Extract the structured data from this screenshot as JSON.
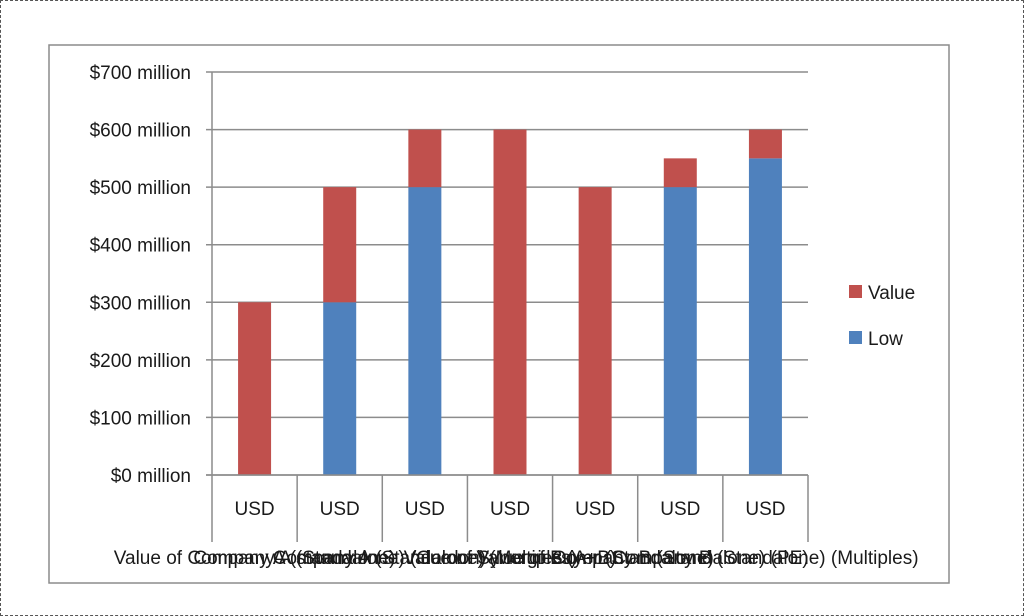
{
  "chart_data": {
    "type": "bar",
    "stacked": true,
    "categories": [
      "Value of Company A (standalone)",
      "Company A (Standalone) (Gordon)",
      "Company A (Standalone) (Multiples)",
      "Value of Synergies (A+B)",
      "Value of Buyer (Standalone)",
      "Company B (Standalone) (PE)",
      "Company B (Standalone) (Multiples)"
    ],
    "category_top_labels": [
      "USD",
      "USD",
      "USD",
      "USD",
      "USD",
      "USD",
      "USD"
    ],
    "series": [
      {
        "name": "Low",
        "color": "#4F81BD",
        "values": [
          0,
          300,
          500,
          0,
          0,
          500,
          550
        ]
      },
      {
        "name": "Value",
        "color": "#C0504D",
        "values": [
          300,
          200,
          100,
          600,
          500,
          50,
          50
        ]
      }
    ],
    "y_ticks": [
      {
        "value": 0,
        "label": "$0 million"
      },
      {
        "value": 100,
        "label": "$100 million"
      },
      {
        "value": 200,
        "label": "$200 million"
      },
      {
        "value": 300,
        "label": "$300 million"
      },
      {
        "value": 400,
        "label": "$400 million"
      },
      {
        "value": 500,
        "label": "$500 million"
      },
      {
        "value": 600,
        "label": "$600 million"
      },
      {
        "value": 700,
        "label": "$700 million"
      }
    ],
    "ylim": [
      0,
      700
    ],
    "grid": true,
    "legend": {
      "placement": "right",
      "entries": [
        {
          "name": "Value",
          "color": "#C0504D"
        },
        {
          "name": "Low",
          "color": "#4F81BD"
        }
      ]
    },
    "title": "",
    "xlabel": "",
    "ylabel": ""
  }
}
